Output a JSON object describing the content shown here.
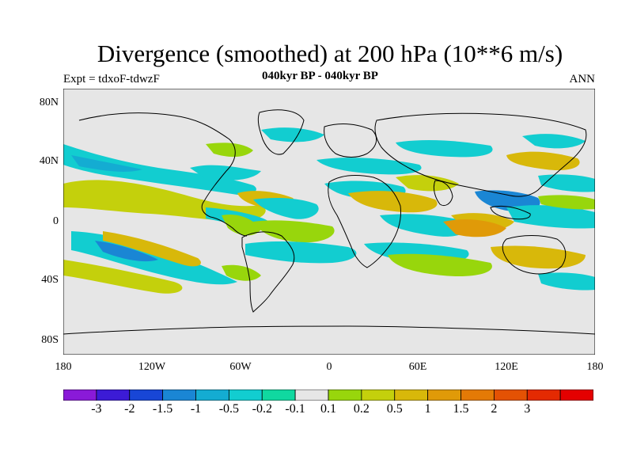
{
  "title": "Divergence (smoothed) at 200 hPa (10**6 m/s)",
  "experiment": "Expt = tdxoF-tdwzF",
  "subtitle": "040kyr BP - 040kyr BP",
  "season": "ANN",
  "colors": {
    "background": "#e6e6e6",
    "coast": "#000000",
    "palette": [
      "#8a1ad8",
      "#3c1bd6",
      "#1846d6",
      "#1a86d4",
      "#14acd2",
      "#12cdd0",
      "#10d8a0",
      "#e6e6e6",
      "#98d60c",
      "#c4d00c",
      "#d8b80a",
      "#e09a08",
      "#e47a06",
      "#e45204",
      "#e42a02",
      "#e40000"
    ]
  },
  "lat_labels": [
    "80N",
    "40N",
    "0",
    "40S",
    "80S"
  ],
  "lon_labels": [
    "180",
    "120W",
    "60W",
    "0",
    "60E",
    "120E",
    "180"
  ],
  "colorbar_labels": [
    "-3",
    "-2",
    "-1.5",
    "-1",
    "-0.5",
    "-0.2",
    "-0.1",
    "0.1",
    "0.2",
    "0.5",
    "1",
    "1.5",
    "2",
    "3"
  ]
}
